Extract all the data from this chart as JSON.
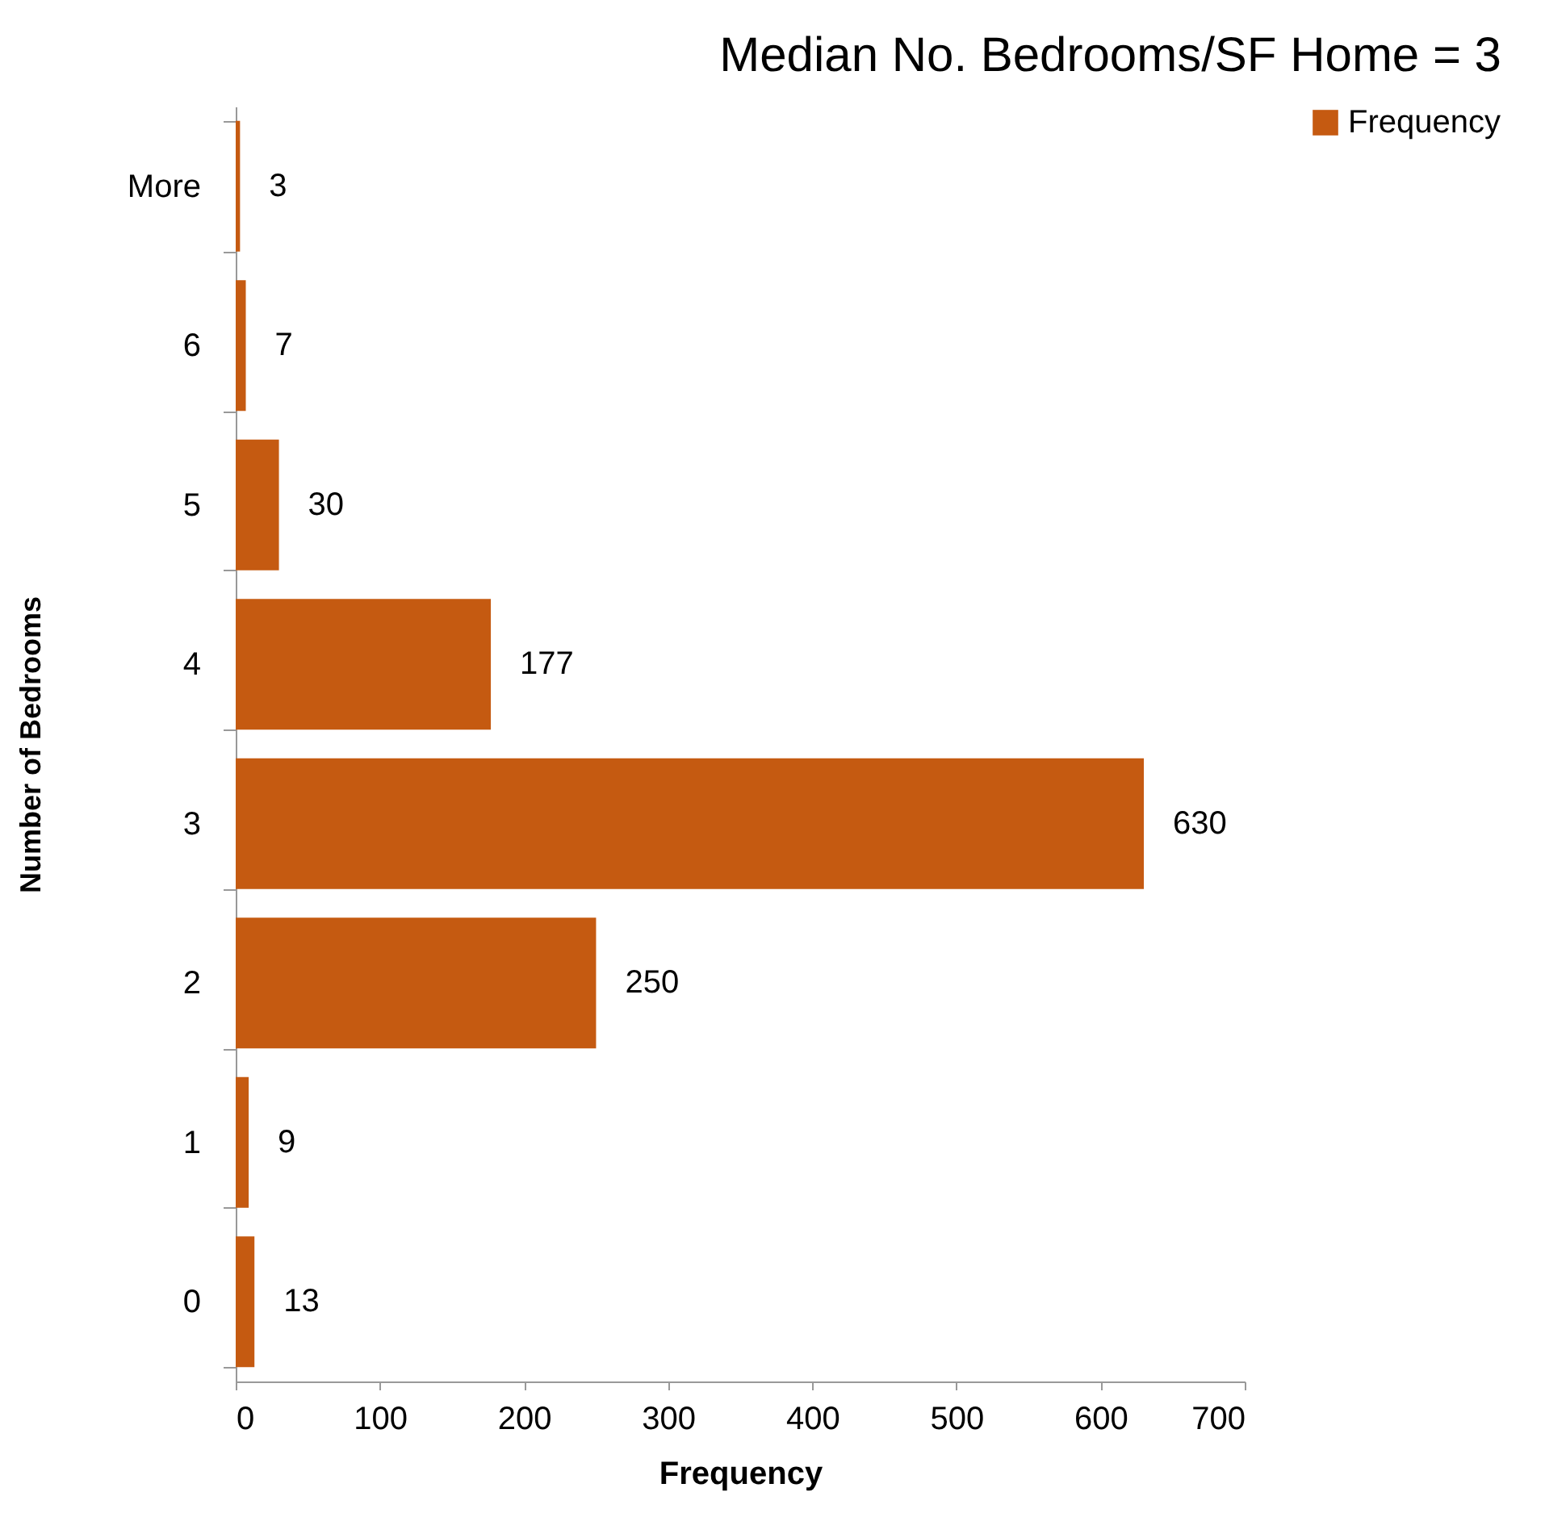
{
  "chart_data": {
    "type": "bar",
    "orientation": "horizontal",
    "title": "Median No. Bedrooms/SF Home = 3",
    "xlabel": "Frequency",
    "ylabel": "Number of Bedrooms",
    "categories": [
      "More",
      "6",
      "5",
      "4",
      "3",
      "2",
      "1",
      "0"
    ],
    "series": [
      {
        "name": "Frequency",
        "color": "#c55a11",
        "values": [
          3,
          7,
          30,
          177,
          630,
          250,
          9,
          13
        ]
      }
    ],
    "xlim": [
      0,
      700
    ],
    "xticks": [
      0,
      100,
      200,
      300,
      400,
      500,
      600,
      700
    ],
    "grid": false,
    "legend": "right",
    "data_labels": true
  }
}
